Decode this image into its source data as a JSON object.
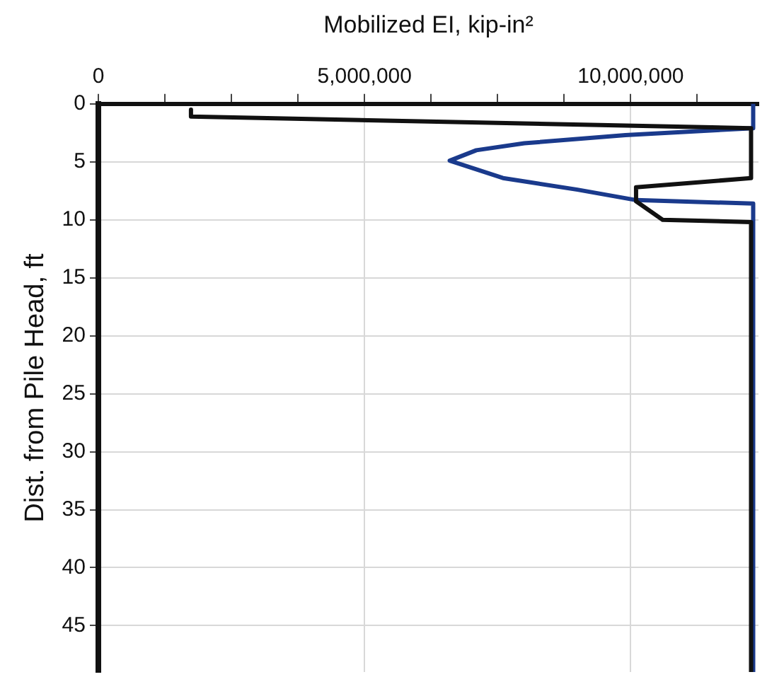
{
  "chart_data": {
    "type": "line",
    "xlabel": "Mobilized EI, kip-in²",
    "ylabel": "Dist. from Pile Head, ft",
    "xlim": [
      0,
      12400000
    ],
    "xticks": [
      0,
      {
        "value": 1250000,
        "label": null
      },
      {
        "value": 2500000,
        "label": null
      },
      {
        "value": 3750000,
        "label": null
      },
      {
        "value": 5000000,
        "label": "5,000,000"
      },
      {
        "value": 6250000,
        "label": null
      },
      {
        "value": 7500000,
        "label": null
      },
      {
        "value": 8750000,
        "label": null
      },
      {
        "value": 10000000,
        "label": "10,000,000"
      },
      {
        "value": 11250000,
        "label": null
      }
    ],
    "ylim": [
      49,
      0
    ],
    "yticks": [
      0,
      5,
      10,
      15,
      20,
      25,
      30,
      35,
      40,
      45
    ],
    "grid": true,
    "legend": false,
    "marker": "none",
    "line_style": "solid",
    "series": [
      {
        "color": "#111111",
        "x": [
          1740000,
          1740000,
          12260000,
          12260000,
          10100000,
          10100000,
          10600000,
          12260000,
          12260000
        ],
        "values": [
          0.5,
          1.1,
          2.1,
          6.4,
          7.2,
          8.4,
          10,
          10.2,
          49
        ]
      },
      {
        "color": "#1a3a8c",
        "x": [
          12300000,
          12300000,
          9900000,
          8000000,
          7100000,
          6600000,
          7600000,
          9000000,
          10100000,
          12300000,
          12300000
        ],
        "values": [
          0,
          2.1,
          2.7,
          3.4,
          4.0,
          4.9,
          6.4,
          7.4,
          8.3,
          8.6,
          49
        ]
      }
    ]
  }
}
